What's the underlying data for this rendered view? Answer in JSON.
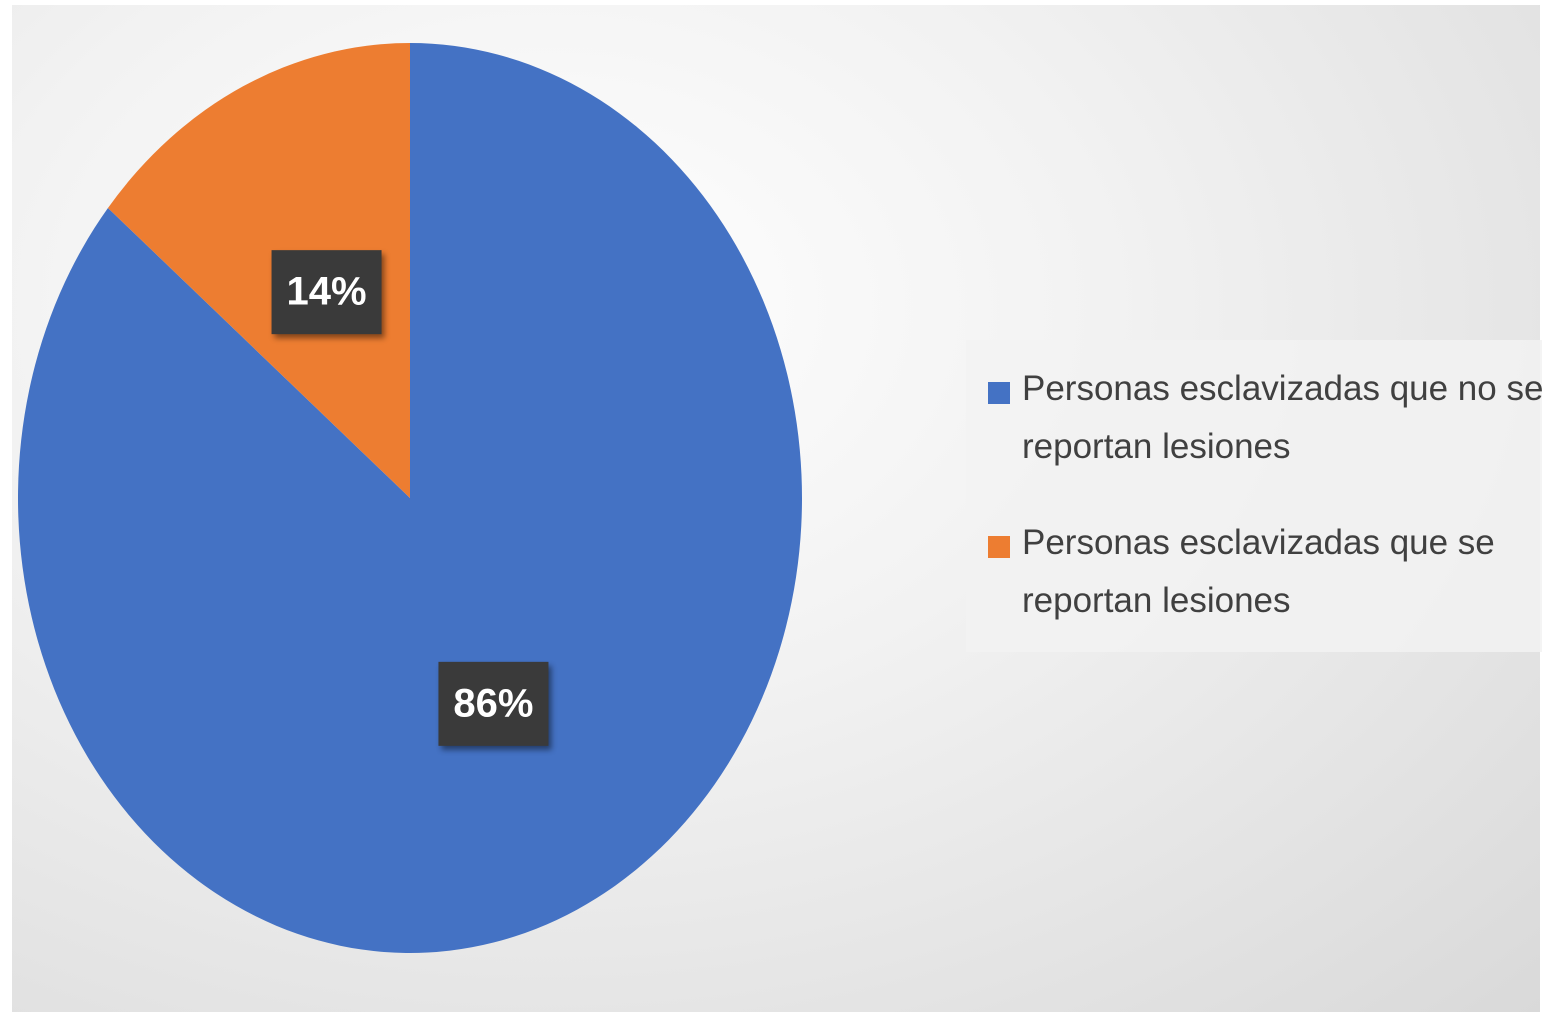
{
  "chart_data": {
    "type": "pie",
    "categories": [
      "Personas esclavizadas que no se reportan lesiones",
      "Personas esclavizadas que se reportan lesiones"
    ],
    "values": [
      86,
      14
    ],
    "value_labels": [
      "86%",
      "14%"
    ],
    "colors": [
      "#4472c4",
      "#ed7d31"
    ],
    "legend": "right"
  }
}
